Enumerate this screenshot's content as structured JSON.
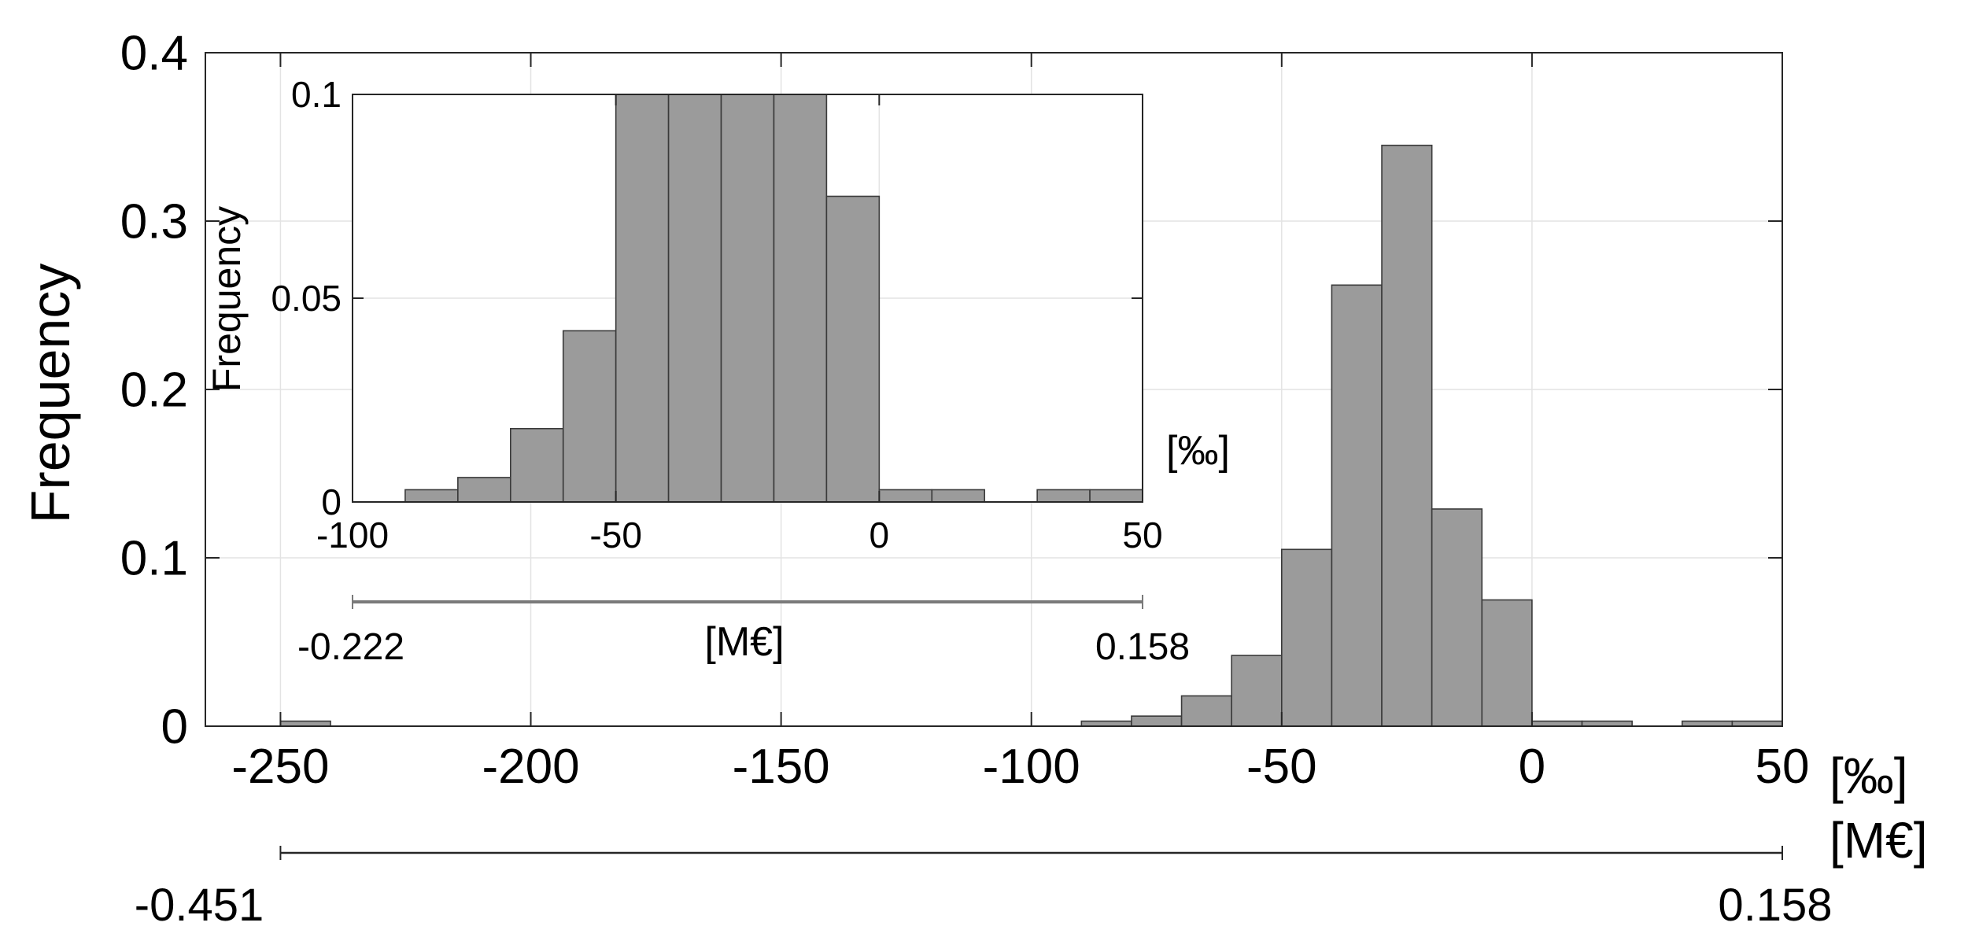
{
  "colors": {
    "bar_fill": "#9b9b9b",
    "bar_stroke": "#3a3a3a",
    "grid": "#e3e3e3",
    "axis": "#262626",
    "money_axis_main": "#262626",
    "money_axis_inset": "#7a7a7a"
  },
  "chart_data": [
    {
      "id": "main",
      "type": "bar",
      "histogram": true,
      "xlabel": "[‰]",
      "ylabel": "Frequency",
      "xlim": [
        -265,
        50
      ],
      "ylim": [
        0,
        0.4
      ],
      "xticks": [
        -250,
        -200,
        -150,
        -100,
        -50,
        0,
        50
      ],
      "yticks": [
        0,
        0.1,
        0.2,
        0.3,
        0.4
      ],
      "xtick_labels": [
        "-250",
        "-200",
        "-150",
        "-100",
        "-50",
        "0",
        "50"
      ],
      "ytick_labels": [
        "0",
        "0.1",
        "0.2",
        "0.3",
        "0.4"
      ],
      "grid": true,
      "bins": [
        {
          "x0": -250,
          "x1": -240,
          "value": 0.003
        },
        {
          "x0": -90,
          "x1": -80,
          "value": 0.003
        },
        {
          "x0": -80,
          "x1": -70,
          "value": 0.006
        },
        {
          "x0": -70,
          "x1": -60,
          "value": 0.018
        },
        {
          "x0": -60,
          "x1": -50,
          "value": 0.042
        },
        {
          "x0": -50,
          "x1": -40,
          "value": 0.105
        },
        {
          "x0": -40,
          "x1": -30,
          "value": 0.262
        },
        {
          "x0": -30,
          "x1": -20,
          "value": 0.345
        },
        {
          "x0": -20,
          "x1": -10,
          "value": 0.129
        },
        {
          "x0": -10,
          "x1": 0,
          "value": 0.075
        },
        {
          "x0": 0,
          "x1": 10,
          "value": 0.003
        },
        {
          "x0": 10,
          "x1": 20,
          "value": 0.003
        },
        {
          "x0": 30,
          "x1": 40,
          "value": 0.003
        },
        {
          "x0": 40,
          "x1": 50,
          "value": 0.003
        }
      ],
      "secondary_axis": {
        "label": "[M€]",
        "min_label": "-0.451",
        "max_label": "0.158",
        "range": [
          -250,
          50
        ]
      }
    },
    {
      "id": "inset",
      "type": "bar",
      "histogram": true,
      "xlabel": "[‰]",
      "ylabel": "Frequency",
      "xlim": [
        -100,
        50
      ],
      "ylim": [
        0,
        0.1
      ],
      "xticks": [
        -100,
        -50,
        0,
        50
      ],
      "yticks": [
        0,
        0.05,
        0.1
      ],
      "xtick_labels": [
        "-100",
        "-50",
        "0",
        "50"
      ],
      "ytick_labels": [
        "0",
        "0.05",
        "0.1"
      ],
      "grid": true,
      "bins": [
        {
          "x0": -90,
          "x1": -80,
          "value": 0.003
        },
        {
          "x0": -80,
          "x1": -70,
          "value": 0.006
        },
        {
          "x0": -70,
          "x1": -60,
          "value": 0.018
        },
        {
          "x0": -60,
          "x1": -50,
          "value": 0.042
        },
        {
          "x0": -50,
          "x1": -40,
          "value": 0.105
        },
        {
          "x0": -40,
          "x1": -30,
          "value": 0.262
        },
        {
          "x0": -30,
          "x1": -20,
          "value": 0.345
        },
        {
          "x0": -20,
          "x1": -10,
          "value": 0.129
        },
        {
          "x0": -10,
          "x1": 0,
          "value": 0.075
        },
        {
          "x0": 0,
          "x1": 10,
          "value": 0.003
        },
        {
          "x0": 10,
          "x1": 20,
          "value": 0.003
        },
        {
          "x0": 30,
          "x1": 40,
          "value": 0.003
        },
        {
          "x0": 40,
          "x1": 50,
          "value": 0.003
        }
      ],
      "secondary_axis": {
        "label": "[M€]",
        "min_label": "-0.222",
        "max_label": "0.158",
        "range": [
          -100,
          50
        ]
      }
    }
  ]
}
